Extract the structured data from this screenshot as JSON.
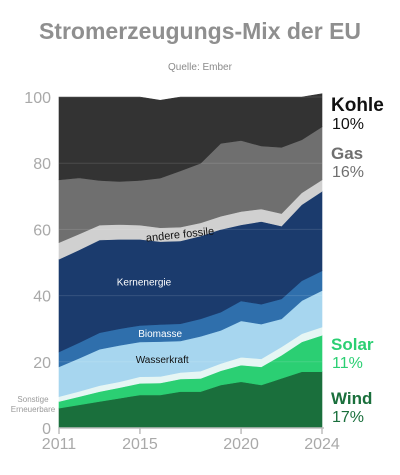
{
  "header": {
    "title": "Stromerzeugungs-Mix der EU",
    "source": "Quelle: Ember"
  },
  "chart_data": {
    "type": "area",
    "stacked": true,
    "x": [
      2011,
      2012,
      2013,
      2014,
      2015,
      2016,
      2017,
      2018,
      2019,
      2020,
      2021,
      2022,
      2023,
      2024
    ],
    "x_ticks": [
      "2011",
      "2015",
      "2020",
      "2024"
    ],
    "y_ticks": [
      "0",
      "20",
      "40",
      "60",
      "80",
      "100"
    ],
    "ylim": [
      0,
      100
    ],
    "grid": true,
    "series": [
      {
        "name": "Wind",
        "color": "#1a6f3c",
        "label": "Wind",
        "legend_value": "17%",
        "values": [
          6,
          7,
          8,
          9,
          10,
          10,
          11,
          11,
          13,
          14,
          13,
          15,
          17,
          17
        ]
      },
      {
        "name": "Solar",
        "color": "#2bcf73",
        "label": "Solar",
        "legend_value": "11%",
        "values": [
          2,
          2.5,
          3,
          3.2,
          3.5,
          3.6,
          3.8,
          4,
          4.3,
          5,
          5.5,
          7,
          9,
          11
        ]
      },
      {
        "name": "Sonstige Erneuerbare",
        "color": "#e6f6f4",
        "label": "Sonstige Erneuerbare",
        "values": [
          1.5,
          1.6,
          1.8,
          1.8,
          2,
          2,
          2,
          2.2,
          2.2,
          2.4,
          2.4,
          2.5,
          2.5,
          2.5
        ]
      },
      {
        "name": "Wasserkraft",
        "color": "#a7d6ef",
        "label": "Wasserkraft",
        "values": [
          9,
          10,
          11,
          11,
          10.5,
          10.5,
          9.5,
          10.5,
          10,
          11,
          10.5,
          8.5,
          10,
          11
        ]
      },
      {
        "name": "Biomasse",
        "color": "#2f6fac",
        "label": "Biomasse",
        "values": [
          4.5,
          4.7,
          5,
          5,
          5,
          5.2,
          5.2,
          5.3,
          5.5,
          6,
          6,
          6,
          6,
          6
        ]
      },
      {
        "name": "Kernenergie",
        "color": "#1b3b6d",
        "label": "Kernenergie",
        "values": [
          28,
          28,
          28,
          27,
          26,
          25,
          25,
          25,
          25,
          23,
          25,
          22,
          23,
          24
        ]
      },
      {
        "name": "andere fossile",
        "color": "#d0d0d0",
        "label": "andere fossile",
        "values": [
          5,
          4.8,
          4.5,
          4.5,
          4.3,
          4.2,
          4.2,
          4,
          4,
          4,
          3.8,
          3.8,
          3.6,
          3.5
        ]
      },
      {
        "name": "Gas",
        "color": "#6f6f6f",
        "label": "Gas",
        "legend_value": "16%",
        "values": [
          19,
          17,
          13.5,
          13,
          13.5,
          15,
          17,
          18,
          22,
          21.5,
          19,
          20,
          16,
          16
        ]
      },
      {
        "name": "Kohle",
        "color": "#333333",
        "label": "Kohle",
        "legend_value": "10%",
        "values": [
          25,
          24.4,
          25.2,
          25.5,
          25.2,
          23.5,
          22.3,
          20,
          14,
          13.1,
          14.8,
          15.2,
          12.9,
          10
        ]
      }
    ]
  }
}
